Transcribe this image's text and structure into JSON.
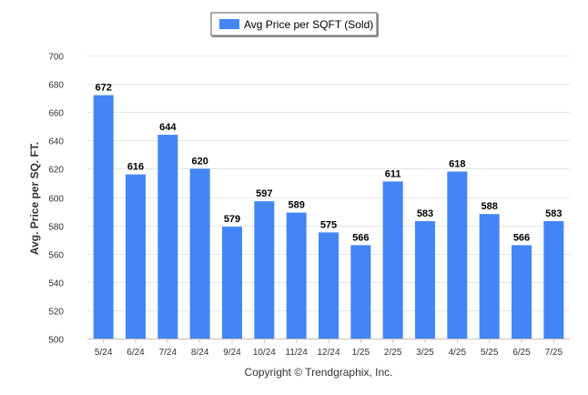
{
  "chart_data": {
    "type": "bar",
    "categories": [
      "5/24",
      "6/24",
      "7/24",
      "8/24",
      "9/24",
      "10/24",
      "11/24",
      "12/24",
      "1/25",
      "2/25",
      "3/25",
      "4/25",
      "5/25",
      "6/25",
      "7/25"
    ],
    "series": [
      {
        "name": "Avg Price per SQFT (Sold)",
        "values": [
          672,
          616,
          644,
          620,
          579,
          597,
          589,
          575,
          566,
          611,
          583,
          618,
          588,
          566,
          583
        ]
      }
    ],
    "ylabel": "Avg. Price per SQ. FT.",
    "xlabel": "",
    "ylim": [
      500,
      700
    ],
    "yticks": [
      500,
      520,
      540,
      560,
      580,
      600,
      620,
      640,
      660,
      680,
      700
    ],
    "grid": true,
    "legend_position": "top-center",
    "colors": {
      "bar": "#4285f4",
      "grid": "#e6e6e6"
    }
  },
  "footer": "Copyright © Trendgraphix, Inc."
}
